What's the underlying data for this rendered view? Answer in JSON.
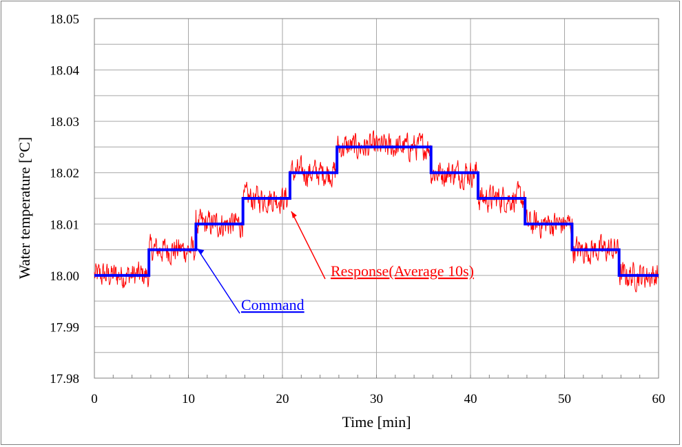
{
  "chart_data": {
    "type": "line",
    "title": "",
    "xlabel": "Time [min]",
    "ylabel": "Water temperature [°C]",
    "xlim": [
      0,
      60
    ],
    "ylim": [
      17.98,
      18.05
    ],
    "x_ticks": [
      0,
      10,
      20,
      30,
      40,
      50,
      60
    ],
    "x_tick_labels": [
      "0",
      "10",
      "20",
      "30",
      "40",
      "50",
      "60"
    ],
    "y_ticks": [
      17.98,
      17.99,
      18.0,
      18.01,
      18.02,
      18.03,
      18.04,
      18.05
    ],
    "y_tick_labels": [
      "17.98",
      "17.99",
      "18.00",
      "18.01",
      "18.02",
      "18.03",
      "18.04",
      "18.05"
    ],
    "minor_y_step": 0.005,
    "grid": true,
    "series": [
      {
        "name": "Command",
        "color": "#0000ff",
        "step": true,
        "x": [
          0,
          5.8,
          10.8,
          15.8,
          20.8,
          25.8,
          35.8,
          40.8,
          45.8,
          50.8,
          55.8,
          60
        ],
        "values": [
          18.0,
          18.005,
          18.01,
          18.015,
          18.02,
          18.025,
          18.02,
          18.015,
          18.01,
          18.005,
          18.0,
          18.0
        ]
      },
      {
        "name": "Response(Average 10s)",
        "color": "#ff0000",
        "noisy_around_command": true,
        "noise_amplitude": 0.0025
      }
    ],
    "annotations": [
      {
        "text": "Command",
        "color": "#0000ff",
        "points_to": [
          10.8,
          18.006
        ]
      },
      {
        "text": "Response(Average 10s)",
        "color": "#ff0000",
        "points_to": [
          20.8,
          18.013
        ]
      }
    ]
  }
}
